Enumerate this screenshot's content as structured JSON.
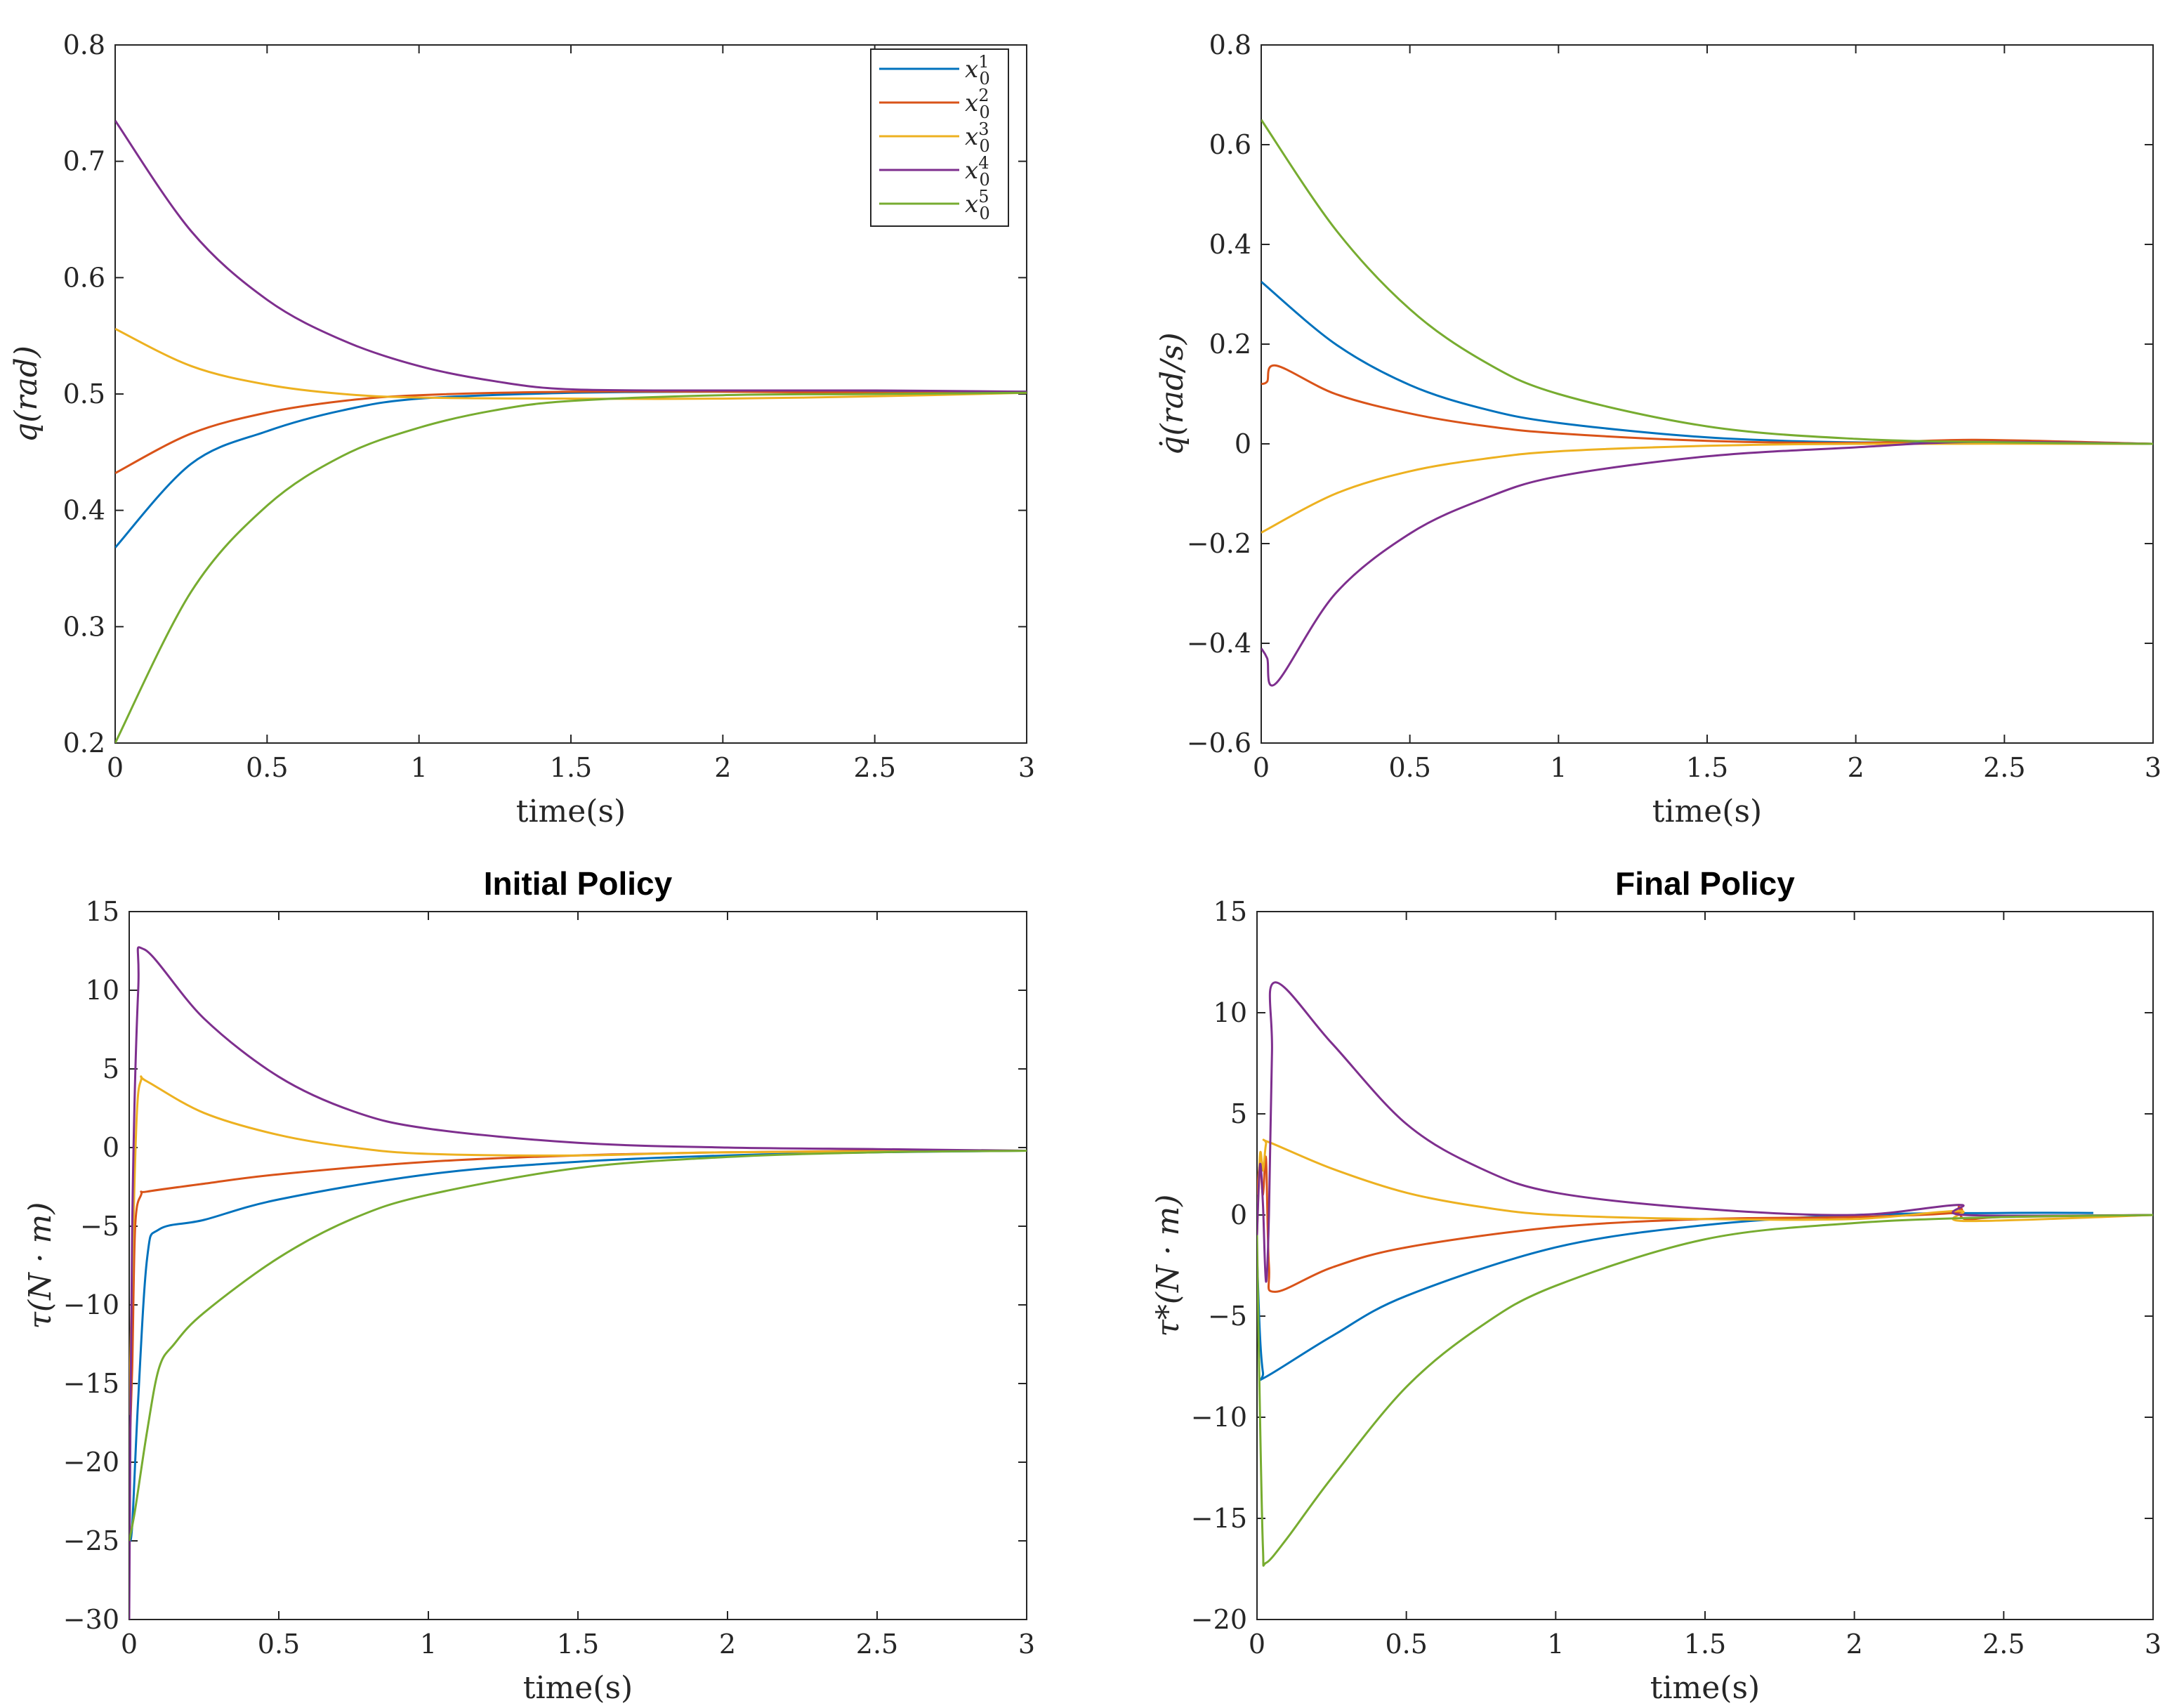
{
  "chart_data": [
    {
      "type": "line",
      "title": "",
      "xlabel": "time(s)",
      "ylabel": "q(rad)",
      "xlim": [
        0,
        3
      ],
      "ylim": [
        0.2,
        0.8
      ],
      "xticks": [
        "0",
        "0.5",
        "1",
        "1.5",
        "2",
        "2.5",
        "3"
      ],
      "yticks": [
        "0.2",
        "0.3",
        "0.4",
        "0.5",
        "0.6",
        "0.7",
        "0.8"
      ],
      "legend": {
        "location": "top-right",
        "entries": [
          "x_0^1",
          "x_0^2",
          "x_0^3",
          "x_0^4",
          "x_0^5"
        ]
      },
      "series": [
        {
          "name": "x_0^1",
          "x": [
            0,
            0.25,
            0.5,
            0.75,
            1,
            1.5,
            2,
            2.5,
            3
          ],
          "values": [
            0.368,
            0.44,
            0.468,
            0.486,
            0.496,
            0.501,
            0.502,
            0.502,
            0.502
          ]
        },
        {
          "name": "x_0^2",
          "x": [
            0,
            0.25,
            0.5,
            0.75,
            1,
            1.5,
            2,
            2.5,
            3
          ],
          "values": [
            0.432,
            0.466,
            0.484,
            0.494,
            0.499,
            0.502,
            0.502,
            0.501,
            0.501
          ]
        },
        {
          "name": "x_0^3",
          "x": [
            0,
            0.25,
            0.5,
            0.75,
            1,
            1.5,
            2,
            2.5,
            3
          ],
          "values": [
            0.556,
            0.524,
            0.508,
            0.5,
            0.497,
            0.496,
            0.496,
            0.498,
            0.501
          ]
        },
        {
          "name": "x_0^4",
          "x": [
            0,
            0.25,
            0.5,
            0.75,
            1,
            1.25,
            1.5,
            2,
            2.5,
            3
          ],
          "values": [
            0.735,
            0.64,
            0.581,
            0.546,
            0.524,
            0.511,
            0.504,
            0.503,
            0.503,
            0.502
          ]
        },
        {
          "name": "x_0^5",
          "x": [
            0,
            0.25,
            0.5,
            0.75,
            1,
            1.25,
            1.5,
            2,
            2.5,
            3
          ],
          "values": [
            0.2,
            0.33,
            0.404,
            0.447,
            0.471,
            0.486,
            0.494,
            0.499,
            0.5,
            0.501
          ]
        }
      ]
    },
    {
      "type": "line",
      "title": "",
      "xlabel": "time(s)",
      "ylabel": "q̇(rad/s)",
      "xlim": [
        0,
        3
      ],
      "ylim": [
        -0.6,
        0.8
      ],
      "xticks": [
        "0",
        "0.5",
        "1",
        "1.5",
        "2",
        "2.5",
        "3"
      ],
      "yticks": [
        "−0.6",
        "−0.4",
        "−0.2",
        "0",
        "0.2",
        "0.4",
        "0.6",
        "0.8"
      ],
      "series": [
        {
          "name": "x_0^1",
          "x": [
            0,
            0.25,
            0.5,
            0.75,
            1,
            1.5,
            2,
            2.4,
            3
          ],
          "values": [
            0.325,
            0.2,
            0.118,
            0.07,
            0.042,
            0.013,
            0.003,
            0.006,
            0.0
          ]
        },
        {
          "name": "x_0^2",
          "x": [
            0,
            0.02,
            0.05,
            0.25,
            0.5,
            0.75,
            1,
            1.5,
            2,
            2.4,
            3
          ],
          "values": [
            0.12,
            0.125,
            0.157,
            0.1,
            0.061,
            0.036,
            0.021,
            0.006,
            0.002,
            0.008,
            0.0
          ]
        },
        {
          "name": "x_0^3",
          "x": [
            0,
            0.25,
            0.5,
            0.75,
            1,
            1.5,
            2,
            3
          ],
          "values": [
            -0.178,
            -0.1,
            -0.055,
            -0.03,
            -0.015,
            -0.004,
            0.0,
            0.0
          ]
        },
        {
          "name": "x_0^4",
          "x": [
            0,
            0.02,
            0.05,
            0.25,
            0.5,
            0.75,
            1,
            1.5,
            2,
            2.4,
            3
          ],
          "values": [
            -0.41,
            -0.43,
            -0.48,
            -0.3,
            -0.18,
            -0.11,
            -0.065,
            -0.025,
            -0.007,
            0.004,
            0.0
          ]
        },
        {
          "name": "x_0^5",
          "x": [
            0,
            0.25,
            0.5,
            0.75,
            1,
            1.5,
            2,
            2.5,
            3
          ],
          "values": [
            0.65,
            0.43,
            0.27,
            0.165,
            0.1,
            0.035,
            0.01,
            0.003,
            0.0
          ]
        }
      ]
    },
    {
      "type": "line",
      "title": "Initial Policy",
      "xlabel": "time(s)",
      "ylabel": "τ(N · m)",
      "xlim": [
        0,
        3
      ],
      "ylim": [
        -30,
        15
      ],
      "xticks": [
        "0",
        "0.5",
        "1",
        "1.5",
        "2",
        "2.5",
        "3"
      ],
      "yticks": [
        "−30",
        "−25",
        "−20",
        "−15",
        "−10",
        "−5",
        "0",
        "5",
        "10",
        "15"
      ],
      "series": [
        {
          "name": "x_0^1",
          "x": [
            0,
            0.01,
            0.03,
            0.06,
            0.1,
            0.25,
            0.5,
            1,
            1.5,
            2,
            2.5,
            3
          ],
          "values": [
            -25,
            -24,
            -16,
            -7,
            -5.2,
            -4.6,
            -3.3,
            -1.7,
            -0.9,
            -0.5,
            -0.3,
            -0.2
          ]
        },
        {
          "name": "x_0^2",
          "x": [
            0,
            0.01,
            0.02,
            0.04,
            0.06,
            0.25,
            0.5,
            1,
            1.5,
            2,
            2.5,
            3
          ],
          "values": [
            -20,
            -14,
            -5,
            -3,
            -2.8,
            -2.3,
            -1.7,
            -0.9,
            -0.5,
            -0.3,
            -0.2,
            -0.2
          ]
        },
        {
          "name": "x_0^3",
          "x": [
            0,
            0.01,
            0.025,
            0.04,
            0.06,
            0.25,
            0.5,
            0.75,
            1,
            1.5,
            2,
            3
          ],
          "values": [
            -17,
            -8,
            2,
            4.3,
            4.2,
            2.2,
            0.8,
            0.0,
            -0.4,
            -0.5,
            -0.3,
            -0.2
          ]
        },
        {
          "name": "x_0^4",
          "x": [
            0,
            0.01,
            0.03,
            0.05,
            0.25,
            0.5,
            0.75,
            1,
            1.5,
            2,
            2.5,
            3
          ],
          "values": [
            -30,
            -5,
            10,
            12.6,
            8.2,
            4.5,
            2.3,
            1.2,
            0.3,
            0.0,
            -0.1,
            -0.2
          ]
        },
        {
          "name": "x_0^5",
          "x": [
            0,
            0.02,
            0.06,
            0.1,
            0.15,
            0.25,
            0.5,
            0.75,
            1,
            1.5,
            2,
            2.5,
            3
          ],
          "values": [
            -25,
            -23,
            -18,
            -14,
            -12.5,
            -10.5,
            -7,
            -4.5,
            -3,
            -1.3,
            -0.6,
            -0.3,
            -0.2
          ]
        }
      ]
    },
    {
      "type": "line",
      "title": "Final Policy",
      "xlabel": "time(s)",
      "ylabel": "τ*(N · m)",
      "xlim": [
        0,
        3
      ],
      "ylim": [
        -20,
        15
      ],
      "xticks": [
        "0",
        "0.5",
        "1",
        "1.5",
        "2",
        "2.5",
        "3"
      ],
      "yticks": [
        "−20",
        "−15",
        "−10",
        "−5",
        "0",
        "5",
        "10",
        "15"
      ],
      "series": [
        {
          "name": "x_0^1",
          "x": [
            0,
            0.01,
            0.02,
            0.03,
            0.25,
            0.5,
            1,
            1.5,
            2,
            2.5,
            2.8
          ],
          "values": [
            -2,
            -6,
            -7.8,
            -8,
            -6,
            -4,
            -1.6,
            -0.5,
            0.0,
            0.1,
            0.1
          ]
        },
        {
          "name": "x_0^2",
          "x": [
            0,
            0.01,
            0.02,
            0.03,
            0.04,
            0.06,
            0.25,
            0.5,
            1,
            1.5,
            2,
            2.33,
            2.35,
            2.37,
            2.5,
            3
          ],
          "values": [
            1,
            2.5,
            1,
            2.8,
            -2.5,
            -3.8,
            -2.6,
            -1.6,
            -0.6,
            -0.2,
            -0.1,
            0.1,
            0.4,
            -0.2,
            -0.1,
            0.0
          ]
        },
        {
          "name": "x_0^3",
          "x": [
            0,
            0.01,
            0.02,
            0.03,
            0.04,
            0.25,
            0.5,
            0.75,
            1,
            1.5,
            2,
            2.35,
            2.37,
            3
          ],
          "values": [
            -1,
            3,
            2.2,
            3.5,
            3.6,
            2.3,
            1.1,
            0.4,
            0.0,
            -0.2,
            -0.2,
            0.2,
            -0.3,
            0.0
          ]
        },
        {
          "name": "x_0^4",
          "x": [
            0,
            0.01,
            0.02,
            0.03,
            0.04,
            0.05,
            0.06,
            0.25,
            0.5,
            0.75,
            1,
            1.5,
            2,
            2.35,
            2.37,
            3
          ],
          "values": [
            -1,
            2.5,
            0.5,
            -3.3,
            0,
            8,
            11.5,
            8.5,
            4.5,
            2.3,
            1.1,
            0.3,
            0.0,
            0.5,
            0.0,
            0.0
          ]
        },
        {
          "name": "x_0^5",
          "x": [
            0,
            0.01,
            0.02,
            0.03,
            0.1,
            0.25,
            0.5,
            0.75,
            1,
            1.5,
            2,
            2.5,
            3
          ],
          "values": [
            -1,
            -10,
            -16.5,
            -17.2,
            -16,
            -13,
            -8.5,
            -5.5,
            -3.5,
            -1.2,
            -0.4,
            -0.1,
            0.0
          ]
        }
      ]
    }
  ],
  "colors": {
    "x_0^1": "#0072BD",
    "x_0^2": "#D95319",
    "x_0^3": "#EDB120",
    "x_0^4": "#7E2F8E",
    "x_0^5": "#77AC30"
  }
}
